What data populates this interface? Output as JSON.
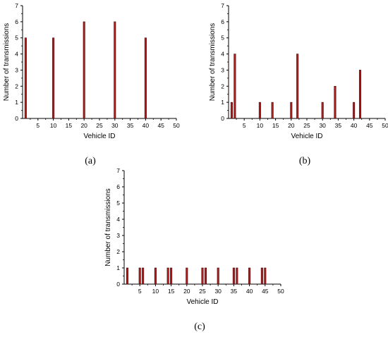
{
  "chart_data": [
    {
      "type": "bar",
      "caption": "(a)",
      "xlabel": "Vehicle ID",
      "ylabel": "Number of transmissions",
      "xlim": [
        0,
        50
      ],
      "ylim": [
        0,
        7
      ],
      "xticks": [
        5,
        10,
        15,
        20,
        25,
        30,
        35,
        40,
        45,
        50
      ],
      "yticks": [
        0,
        1,
        2,
        3,
        4,
        5,
        6,
        7
      ],
      "grid": false,
      "x": [
        1,
        10,
        20,
        30,
        40
      ],
      "values": [
        5,
        5,
        6,
        6,
        5
      ]
    },
    {
      "type": "bar",
      "caption": "(b)",
      "xlabel": "Vehicle ID",
      "ylabel": "Number of transmissions",
      "xlim": [
        0,
        50
      ],
      "ylim": [
        0,
        7
      ],
      "xticks": [
        5,
        10,
        15,
        20,
        25,
        30,
        35,
        40,
        45,
        50
      ],
      "yticks": [
        0,
        1,
        2,
        3,
        4,
        5,
        6,
        7
      ],
      "grid": false,
      "x": [
        1,
        2,
        10,
        14,
        20,
        22,
        30,
        34,
        40,
        42
      ],
      "values": [
        1,
        4,
        1,
        1,
        1,
        4,
        1,
        2,
        1,
        3
      ]
    },
    {
      "type": "bar",
      "caption": "(c)",
      "xlabel": "Vehicle ID",
      "ylabel": "Number of transmissions",
      "xlim": [
        0,
        50
      ],
      "ylim": [
        0,
        7
      ],
      "xticks": [
        5,
        10,
        15,
        20,
        25,
        30,
        35,
        40,
        45,
        50
      ],
      "yticks": [
        0,
        1,
        2,
        3,
        4,
        5,
        6,
        7
      ],
      "grid": false,
      "x": [
        1,
        5,
        6,
        10,
        14,
        15,
        20,
        25,
        26,
        30,
        35,
        36,
        40,
        44,
        45
      ],
      "values": [
        1,
        1,
        1,
        1,
        1,
        1,
        1,
        1,
        1,
        1,
        1,
        1,
        1,
        1,
        1
      ]
    }
  ]
}
